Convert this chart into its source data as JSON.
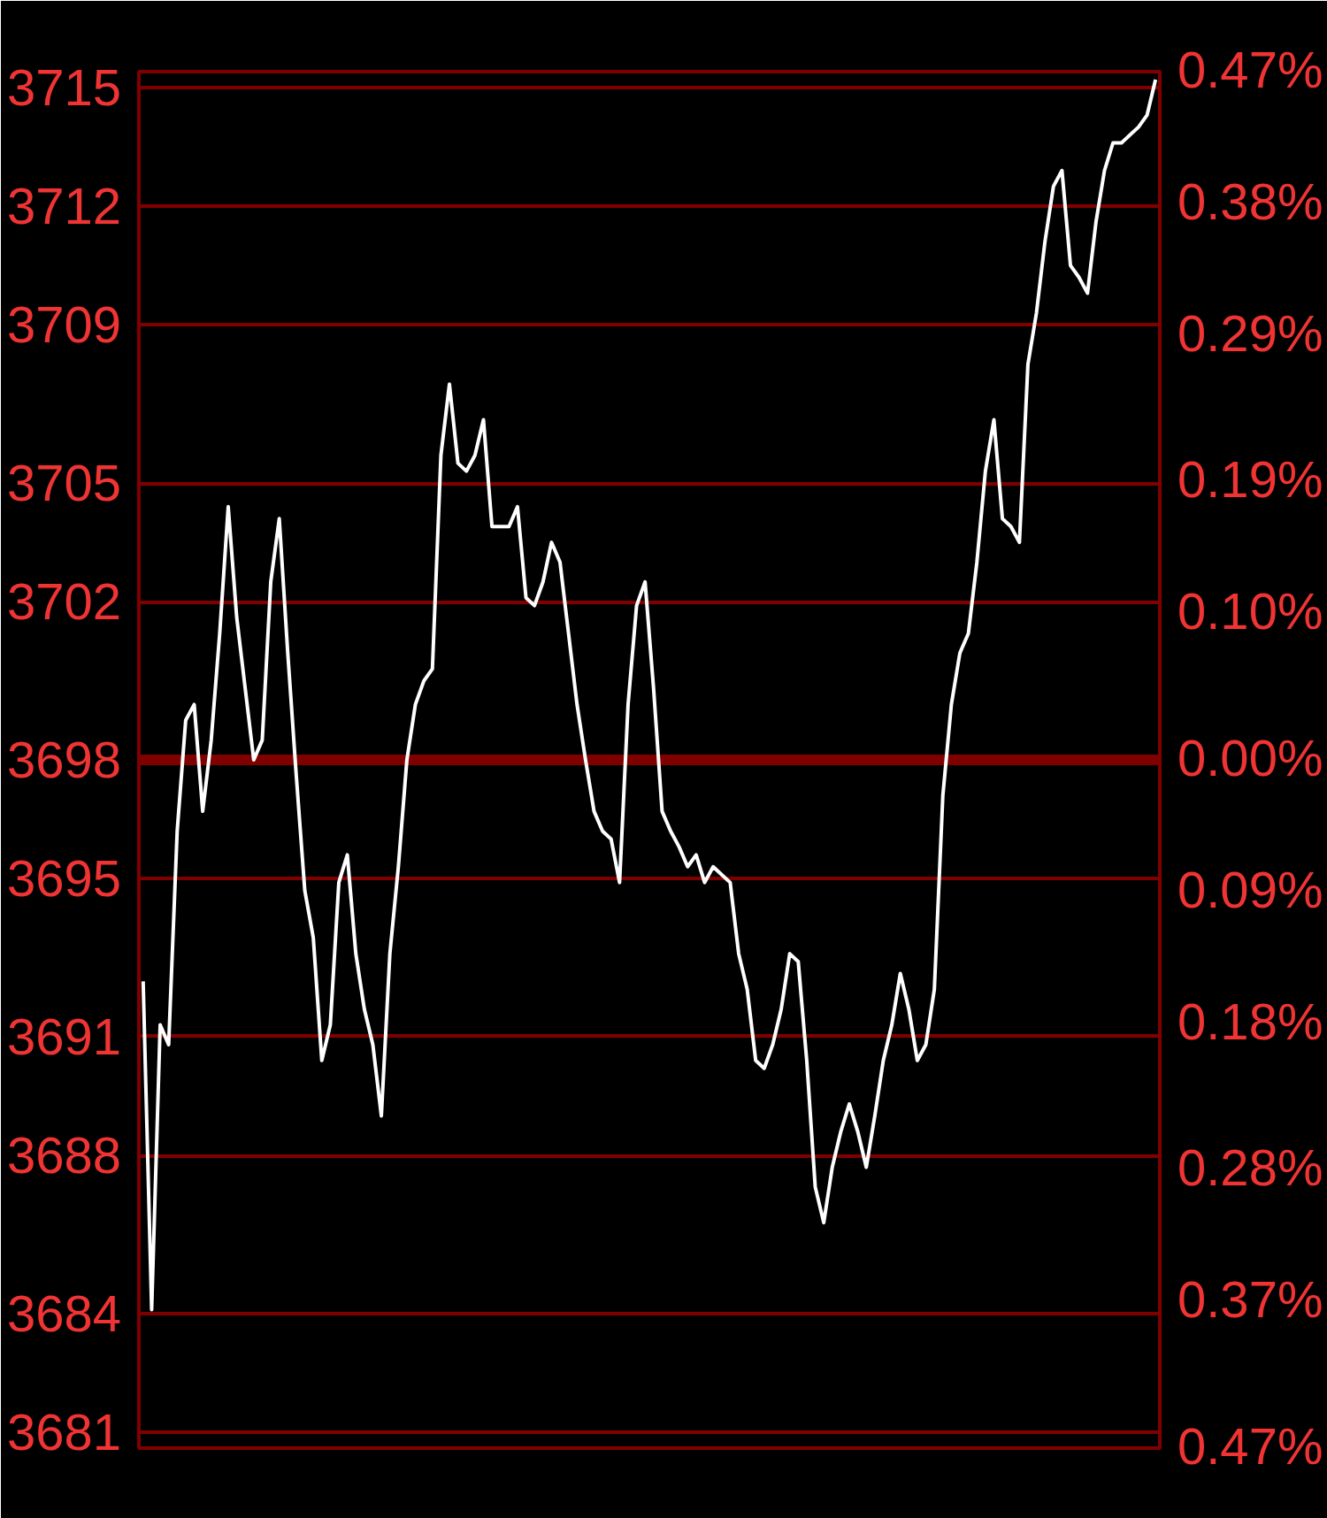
{
  "chart_data": {
    "type": "line",
    "categories": [
      null,
      null,
      null,
      null,
      null,
      null,
      null,
      null,
      null,
      null,
      null,
      null,
      null,
      null,
      null,
      null,
      null,
      null,
      null,
      null,
      null,
      null,
      null,
      null,
      null,
      null,
      null,
      null,
      null,
      null,
      null,
      null,
      null,
      null,
      null,
      null,
      null,
      null,
      null,
      null,
      null,
      null,
      null,
      null,
      null,
      null,
      null,
      null,
      null,
      null,
      null,
      null,
      null,
      null,
      null,
      null,
      null,
      null,
      null,
      null,
      null,
      null,
      null,
      null,
      null,
      null,
      null,
      null,
      null,
      null,
      null,
      null,
      null,
      null,
      null,
      null,
      null,
      null,
      null,
      null,
      null,
      null,
      null,
      null,
      null,
      null,
      null,
      null,
      null,
      null,
      null,
      null,
      null,
      null,
      null,
      null,
      null,
      null,
      null,
      null,
      null,
      null,
      null,
      null,
      null,
      null,
      null,
      null,
      null,
      null,
      null,
      null,
      null,
      null,
      null,
      null,
      null,
      null,
      null,
      null
    ],
    "series": [
      {
        "color": "#ffffff",
        "values": [
          3692.4,
          3684.1,
          3691.3,
          3690.8,
          3696.2,
          3699.0,
          3699.4,
          3696.7,
          3698.5,
          3701.2,
          3704.4,
          3701.6,
          3699.8,
          3698.0,
          3698.5,
          3702.5,
          3704.1,
          3700.7,
          3697.6,
          3694.7,
          3693.5,
          3690.4,
          3691.3,
          3694.9,
          3695.6,
          3693.1,
          3691.7,
          3690.8,
          3689.0,
          3693.1,
          3695.3,
          3698.0,
          3699.4,
          3700.0,
          3700.3,
          3705.7,
          3707.5,
          3705.5,
          3705.3,
          3705.7,
          3706.6,
          3703.9,
          3703.9,
          3703.9,
          3704.4,
          3702.1,
          3701.9,
          3702.5,
          3703.5,
          3703.0,
          3701.2,
          3699.4,
          3698.0,
          3696.7,
          3696.2,
          3696.0,
          3694.9,
          3699.4,
          3701.9,
          3702.5,
          3699.8,
          3696.7,
          3696.2,
          3695.8,
          3695.3,
          3695.6,
          3694.9,
          3695.3,
          3695.1,
          3694.9,
          3693.1,
          3692.2,
          3690.4,
          3690.2,
          3690.8,
          3691.7,
          3693.1,
          3692.9,
          3690.4,
          3687.2,
          3686.3,
          3687.7,
          3688.6,
          3689.3,
          3688.6,
          3687.7,
          3689.0,
          3690.4,
          3691.3,
          3692.6,
          3691.7,
          3690.4,
          3690.8,
          3692.2,
          3697.1,
          3699.4,
          3700.7,
          3701.2,
          3703.0,
          3705.3,
          3706.6,
          3704.1,
          3703.9,
          3703.5,
          3708.0,
          3709.3,
          3711.1,
          3712.5,
          3712.9,
          3710.5,
          3710.2,
          3709.8,
          3711.6,
          3712.9,
          3713.6,
          3713.6,
          3713.8,
          3714.0,
          3714.3,
          3715.2
        ]
      }
    ],
    "ylim": [
      3680.6,
      3715.4
    ],
    "yticks": [
      3681,
      3684,
      3688,
      3691,
      3695,
      3698,
      3702,
      3705,
      3709,
      3712,
      3715
    ],
    "y2lim": [
      -0.47,
      0.47
    ],
    "y2ticks": [
      {
        "value": -0.47,
        "label": "0.47%"
      },
      {
        "value": -0.37,
        "label": "0.37%"
      },
      {
        "value": -0.28,
        "label": "0.28%"
      },
      {
        "value": -0.18,
        "label": "0.18%"
      },
      {
        "value": -0.09,
        "label": "0.09%"
      },
      {
        "value": 0,
        "label": "0.00%"
      },
      {
        "value": 0.1,
        "label": "0.10%"
      },
      {
        "value": 0.19,
        "label": "0.19%"
      },
      {
        "value": 0.29,
        "label": "0.29%"
      },
      {
        "value": 0.38,
        "label": "0.38%"
      },
      {
        "value": 0.47,
        "label": "0.47%"
      }
    ],
    "ref_lines": [
      {
        "axis": "y",
        "value": 3698,
        "color": "#800000",
        "line_style": "solid"
      }
    ],
    "grid": "y",
    "tick_labels": "y",
    "line_style": "solid",
    "marker": "none"
  }
}
